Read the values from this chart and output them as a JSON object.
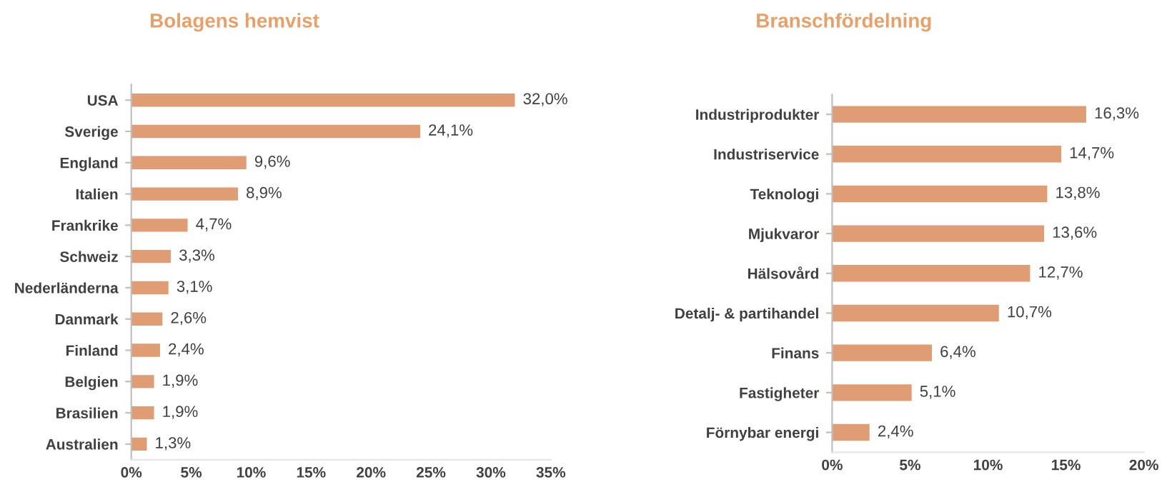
{
  "chart_data": [
    {
      "type": "bar",
      "orientation": "horizontal",
      "title": "Bolagens hemvist",
      "categories": [
        "USA",
        "Sverige",
        "England",
        "Italien",
        "Frankrike",
        "Schweiz",
        "Nederländerna",
        "Danmark",
        "Finland",
        "Belgien",
        "Brasilien",
        "Australien"
      ],
      "values": [
        32.0,
        24.1,
        9.6,
        8.9,
        4.7,
        3.3,
        3.1,
        2.6,
        2.4,
        1.9,
        1.9,
        1.3
      ],
      "value_labels": [
        "32,0%",
        "24,1%",
        "9,6%",
        "8,9%",
        "4,7%",
        "3,3%",
        "3,1%",
        "2,6%",
        "2,4%",
        "1,9%",
        "1,9%",
        "1,3%"
      ],
      "color": "#e09c72",
      "xlim": [
        0,
        35
      ],
      "xticks": [
        {
          "value": 0,
          "label": "0%"
        },
        {
          "value": 5,
          "label": "5%"
        },
        {
          "value": 10,
          "label": "10%"
        },
        {
          "value": 15,
          "label": "15%"
        },
        {
          "value": 20,
          "label": "20%"
        },
        {
          "value": 25,
          "label": "25%"
        },
        {
          "value": 30,
          "label": "30%"
        },
        {
          "value": 35,
          "label": "35%"
        }
      ],
      "grid": false,
      "legend": false
    },
    {
      "type": "bar",
      "orientation": "horizontal",
      "title": "Branschfördelning",
      "categories": [
        "Industriprodukter",
        "Industriservice",
        "Teknologi",
        "Mjukvaror",
        "Hälsovård",
        "Detalj- & partihandel",
        "Finans",
        "Fastigheter",
        "Förnybar energi"
      ],
      "values": [
        16.3,
        14.7,
        13.8,
        13.6,
        12.7,
        10.7,
        6.4,
        5.1,
        2.4
      ],
      "value_labels": [
        "16,3%",
        "14,7%",
        "13,8%",
        "13,6%",
        "12,7%",
        "10,7%",
        "6,4%",
        "5,1%",
        "2,4%"
      ],
      "color": "#e09c72",
      "xlim": [
        0,
        20
      ],
      "xticks": [
        {
          "value": 0,
          "label": "0%"
        },
        {
          "value": 5,
          "label": "5%"
        },
        {
          "value": 10,
          "label": "10%"
        },
        {
          "value": 15,
          "label": "15%"
        },
        {
          "value": 20,
          "label": "20%"
        }
      ],
      "grid": false,
      "legend": false
    }
  ]
}
